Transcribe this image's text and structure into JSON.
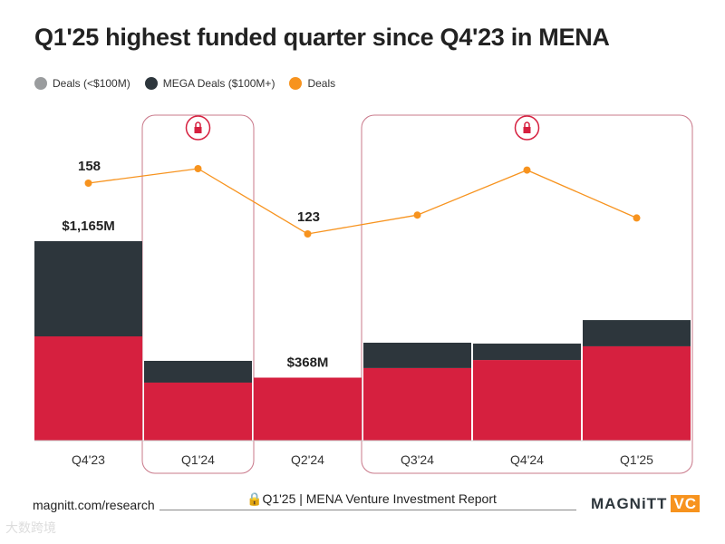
{
  "title": "Q1'25 highest funded quarter since Q4'23 in MENA",
  "legend": [
    {
      "label": "Deals (<$100M)",
      "color": "#9a9c9e"
    },
    {
      "label": "MEGA Deals ($100M+)",
      "color": "#2d363c"
    },
    {
      "label": "Deals",
      "color": "#f7931e"
    }
  ],
  "colors": {
    "small": "#d6203f",
    "mega": "#2d363c",
    "deals": "#f7931e",
    "highlight": "#c9788a"
  },
  "chart_data": {
    "type": "bar",
    "title": "Q1'25 highest funded quarter since Q4'23 in MENA",
    "categories": [
      "Q4'23",
      "Q1'24",
      "Q2'24",
      "Q3'24",
      "Q4'24",
      "Q1'25"
    ],
    "series": [
      {
        "name": "Deals (<$100M)",
        "unit": "$M",
        "values": [
          609,
          339,
          368,
          424,
          471,
          551
        ]
      },
      {
        "name": "MEGA Deals ($100M+)",
        "unit": "$M",
        "values": [
          556,
          127,
          0,
          148,
          96,
          153
        ]
      },
      {
        "name": "Deals",
        "type": "line",
        "values": [
          158,
          168,
          123,
          136,
          167,
          134
        ]
      }
    ],
    "data_labels": [
      {
        "category": "Q4'23",
        "funding": "$1,165M",
        "deals": "158"
      },
      {
        "category": "Q2'24",
        "funding": "$368M",
        "deals": "123"
      }
    ],
    "locked_categories": [
      "Q1'24",
      "Q3'24",
      "Q4'24",
      "Q1'25"
    ],
    "grid": false
  },
  "footer": {
    "source": "magnitt.com/research",
    "report": "Q1'25 | MENA Venture Investment Report",
    "logo": "MAGNiTT",
    "logo_suffix": "VC",
    "watermark": "大数跨境"
  }
}
